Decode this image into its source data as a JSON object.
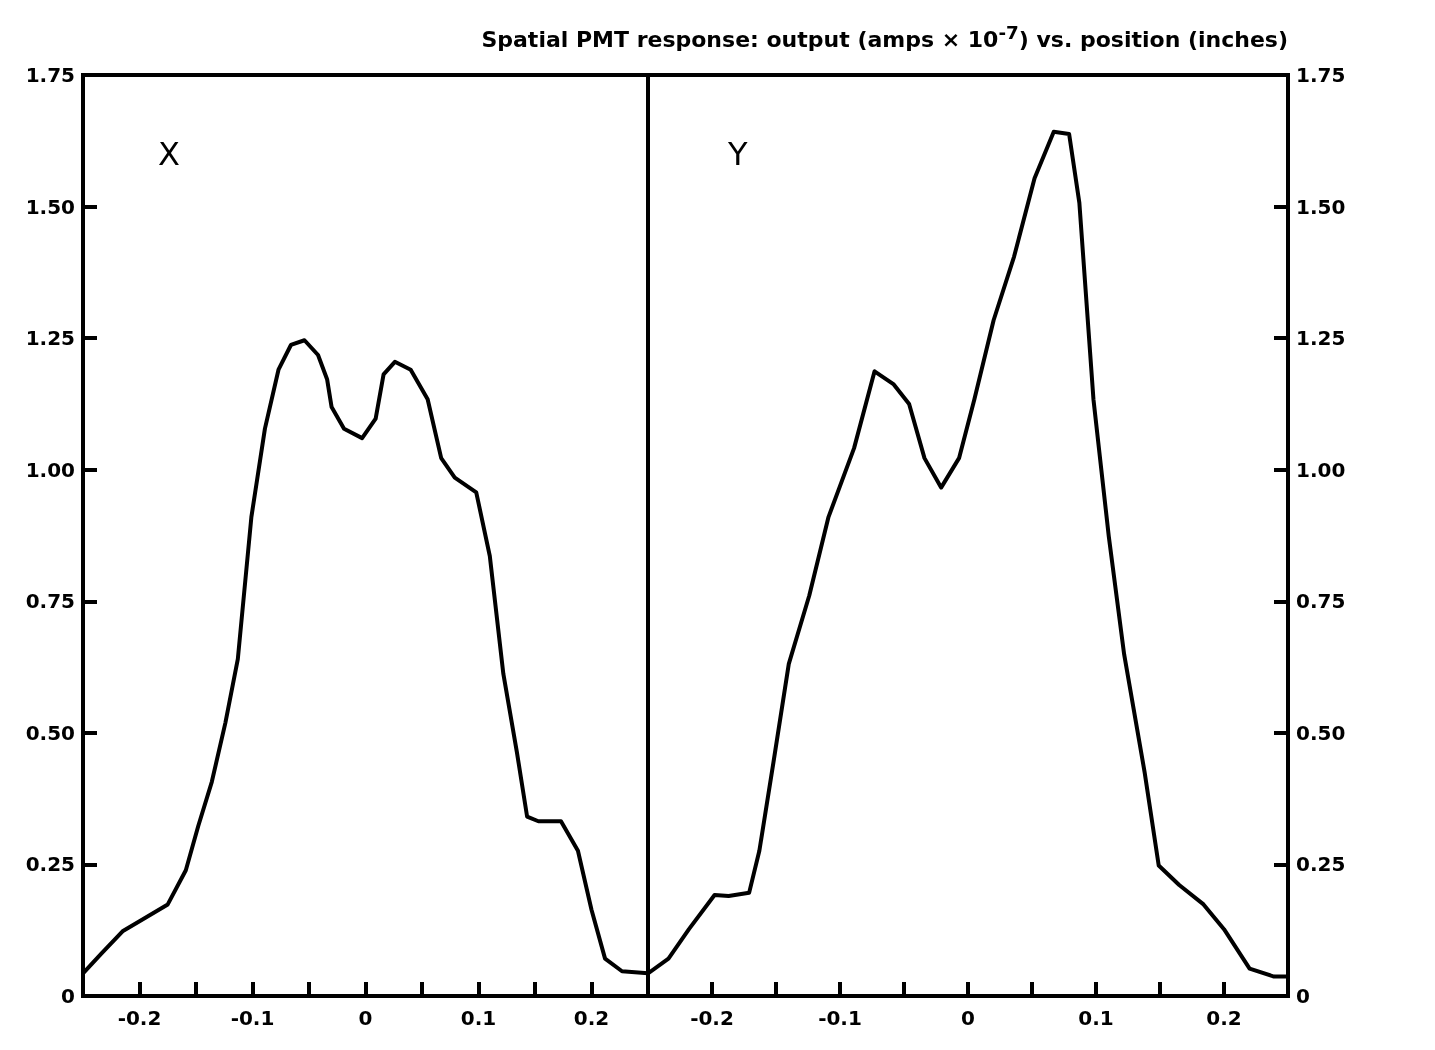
{
  "chart_data": [
    {
      "type": "line",
      "annotations": [
        "X"
      ],
      "xlim": [
        -0.25,
        0.25
      ],
      "ylim": [
        0,
        1.75
      ],
      "xticks": [
        -0.2,
        {
          "value": -0.15,
          "label": null
        },
        -0.1,
        {
          "value": -0.05,
          "label": null
        },
        0,
        {
          "value": 0.05,
          "label": null
        },
        0.1,
        {
          "value": 0.15,
          "label": null
        },
        0.2
      ],
      "yticks": [
        0,
        {
          "value": 0.25,
          "label": "0.25"
        },
        {
          "value": 0.5,
          "label": "0.50"
        },
        {
          "value": 0.75,
          "label": "0.75"
        },
        {
          "value": 1,
          "label": "1.00"
        },
        {
          "value": 1.25,
          "label": "1.25"
        },
        {
          "value": 1.5,
          "label": "1.50"
        },
        {
          "value": 1.75,
          "label": "1.75"
        }
      ],
      "grid": false,
      "marker": "none",
      "line_style": "solid",
      "series": [
        {
          "color": "#000000",
          "x": [
            -0.25,
            -0.234,
            -0.215,
            -0.2,
            -0.175,
            -0.159,
            -0.148,
            -0.136,
            -0.124,
            -0.113,
            -0.101,
            -0.089,
            -0.077,
            -0.066,
            -0.054,
            -0.042,
            -0.034,
            -0.03,
            -0.019,
            -0.003,
            0.009,
            0.016,
            0.026,
            0.04,
            0.055,
            0.067,
            0.079,
            0.098,
            0.11,
            0.122,
            0.134,
            0.143,
            0.153,
            0.173,
            0.188,
            0.2,
            0.212,
            0.227,
            0.25
          ],
          "values": [
            0.043,
            0.08,
            0.123,
            0.142,
            0.174,
            0.239,
            0.323,
            0.407,
            0.519,
            0.64,
            0.91,
            1.078,
            1.19,
            1.237,
            1.246,
            1.218,
            1.172,
            1.119,
            1.078,
            1.06,
            1.097,
            1.181,
            1.205,
            1.19,
            1.134,
            1.022,
            0.985,
            0.957,
            0.836,
            0.612,
            0.463,
            0.341,
            0.332,
            0.332,
            0.276,
            0.164,
            0.071,
            0.047,
            0.043
          ]
        }
      ]
    },
    {
      "type": "line",
      "title": "Spatial PMT response: output (amps × 10$^{-7}$) vs. position (inches)",
      "annotations": [
        "Y"
      ],
      "xlim": [
        -0.25,
        0.25
      ],
      "ylim": [
        0,
        1.75
      ],
      "xticks": [
        -0.2,
        {
          "value": -0.15,
          "label": null
        },
        -0.1,
        {
          "value": -0.05,
          "label": null
        },
        0,
        {
          "value": 0.05,
          "label": null
        },
        0.1,
        {
          "value": 0.15,
          "label": null
        },
        0.2
      ],
      "yticks": [
        0,
        {
          "value": 0.25,
          "label": "0.25"
        },
        {
          "value": 0.5,
          "label": "0.50"
        },
        {
          "value": 0.75,
          "label": "0.75"
        },
        {
          "value": 1,
          "label": "1.00"
        },
        {
          "value": 1.25,
          "label": "1.25"
        },
        {
          "value": 1.5,
          "label": "1.50"
        },
        {
          "value": 1.75,
          "label": "1.75"
        }
      ],
      "grid": false,
      "marker": "none",
      "line_style": "solid",
      "series": [
        {
          "color": "#000000",
          "x": [
            -0.25,
            -0.234,
            -0.218,
            -0.198,
            -0.187,
            -0.171,
            -0.163,
            -0.152,
            -0.14,
            -0.124,
            -0.109,
            -0.089,
            -0.073,
            -0.058,
            -0.046,
            -0.034,
            -0.021,
            -0.007,
            0.005,
            0.02,
            0.036,
            0.052,
            0.067,
            0.079,
            0.087,
            0.098,
            0.11,
            0.122,
            0.138,
            0.149,
            0.165,
            0.184,
            0.2,
            0.22,
            0.239,
            0.25
          ],
          "values": [
            0.043,
            0.071,
            0.127,
            0.192,
            0.19,
            0.196,
            0.276,
            0.444,
            0.631,
            0.761,
            0.91,
            1.041,
            1.187,
            1.162,
            1.125,
            1.022,
            0.966,
            1.022,
            1.134,
            1.284,
            1.405,
            1.554,
            1.642,
            1.638,
            1.507,
            1.134,
            0.873,
            0.649,
            0.425,
            0.248,
            0.211,
            0.174,
            0.127,
            0.052,
            0.037,
            0.037
          ]
        }
      ]
    }
  ]
}
